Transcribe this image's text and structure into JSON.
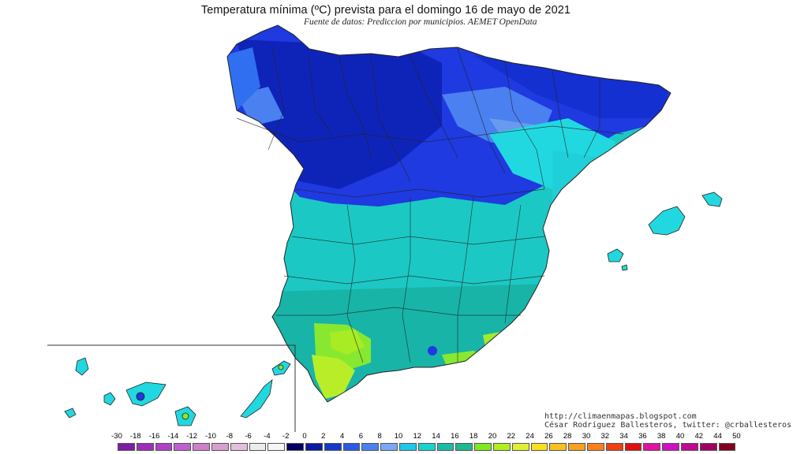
{
  "title": "Temperatura mínima (ºC) prevista para el domingo 16 de mayo de 2021",
  "subtitle": "Fuente de datos: Prediccion por municipios. AEMET OpenData",
  "credits": {
    "line1": "http://climaenmapas.blogspot.com",
    "line2": "César Rodríguez Ballesteros, twitter: @crballesteros"
  },
  "legend": {
    "ticks": [
      "-30",
      "-18",
      "-16",
      "-14",
      "-12",
      "-10",
      "-8",
      "-6",
      "-4",
      "-2",
      "0",
      "2",
      "4",
      "6",
      "8",
      "10",
      "12",
      "14",
      "16",
      "18",
      "20",
      "22",
      "24",
      "26",
      "28",
      "30",
      "32",
      "34",
      "36",
      "38",
      "40",
      "42",
      "44",
      "50"
    ],
    "colors": [
      "#7a1fa2",
      "#9b2fb8",
      "#b040c8",
      "#c060d0",
      "#cc80c8",
      "#d8a0d0",
      "#e0c0dc",
      "#ececec",
      "#f6f6f6",
      "#000060",
      "#0a1a9e",
      "#1438c8",
      "#2a5ae6",
      "#4a80f0",
      "#7aa8f4",
      "#20c8e8",
      "#18d4cc",
      "#1abca8",
      "#20b890",
      "#80e820",
      "#b0f020",
      "#e0f030",
      "#f8e020",
      "#f8c020",
      "#f8a020",
      "#f88020",
      "#f04010",
      "#e01010",
      "#e010a0",
      "#d010c0",
      "#c00890",
      "#a00060",
      "#800020"
    ]
  },
  "map_colors": {
    "north_cold": "#1e3ae0",
    "north_deep": "#0e24b8",
    "light_blue": "#6a9af0",
    "cyan_coast": "#22d8e0",
    "interior_teal": "#1cc8c4",
    "south_teal": "#18b4a8",
    "warm_green": "#88e830",
    "hot_yellow": "#d0f020",
    "border_line": "#222222"
  }
}
